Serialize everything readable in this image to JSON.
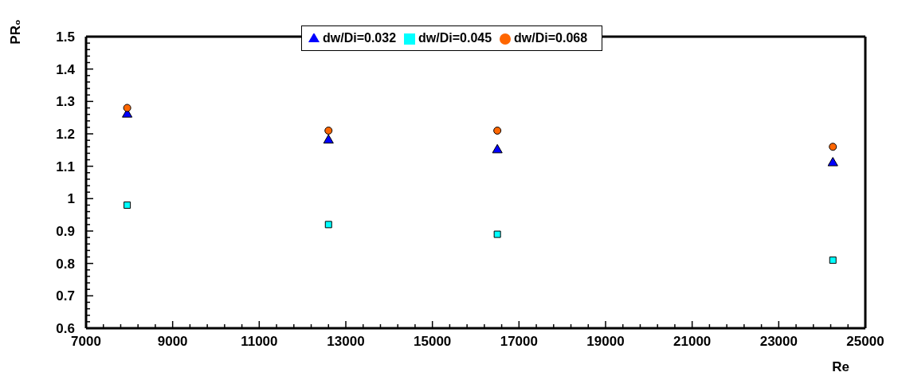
{
  "chart_data": {
    "type": "scatter",
    "xlabel": "Re",
    "ylabel": "PR₀",
    "xlim": [
      7000,
      25000
    ],
    "xticks": [
      7000,
      {
        "value": 7400,
        "label": null
      },
      {
        "value": 7800,
        "label": null
      },
      {
        "value": 8200,
        "label": null
      },
      {
        "value": 8600,
        "label": null
      },
      9000,
      {
        "value": 9400,
        "label": null
      },
      {
        "value": 9800,
        "label": null
      },
      {
        "value": 10200,
        "label": null
      },
      {
        "value": 10600,
        "label": null
      },
      11000,
      {
        "value": 11400,
        "label": null
      },
      {
        "value": 11800,
        "label": null
      },
      {
        "value": 12200,
        "label": null
      },
      {
        "value": 12600,
        "label": null
      },
      13000,
      {
        "value": 13400,
        "label": null
      },
      {
        "value": 13800,
        "label": null
      },
      {
        "value": 14200,
        "label": null
      },
      {
        "value": 14600,
        "label": null
      },
      15000,
      {
        "value": 15400,
        "label": null
      },
      {
        "value": 15800,
        "label": null
      },
      {
        "value": 16200,
        "label": null
      },
      {
        "value": 16600,
        "label": null
      },
      17000,
      {
        "value": 17400,
        "label": null
      },
      {
        "value": 17800,
        "label": null
      },
      {
        "value": 18200,
        "label": null
      },
      {
        "value": 18600,
        "label": null
      },
      19000,
      {
        "value": 19400,
        "label": null
      },
      {
        "value": 19800,
        "label": null
      },
      {
        "value": 20200,
        "label": null
      },
      {
        "value": 20600,
        "label": null
      },
      21000,
      {
        "value": 21400,
        "label": null
      },
      {
        "value": 21800,
        "label": null
      },
      {
        "value": 22200,
        "label": null
      },
      {
        "value": 22600,
        "label": null
      },
      23000,
      {
        "value": 23400,
        "label": null
      },
      {
        "value": 23800,
        "label": null
      },
      {
        "value": 24200,
        "label": null
      },
      {
        "value": 24600,
        "label": null
      },
      25000
    ],
    "ylim": [
      0.6,
      1.5
    ],
    "yticks": [
      0.6,
      {
        "value": 0.62,
        "label": null
      },
      {
        "value": 0.64,
        "label": null
      },
      {
        "value": 0.66,
        "label": null
      },
      {
        "value": 0.68,
        "label": null
      },
      0.7,
      {
        "value": 0.72,
        "label": null
      },
      {
        "value": 0.74,
        "label": null
      },
      {
        "value": 0.76,
        "label": null
      },
      {
        "value": 0.78,
        "label": null
      },
      0.8,
      {
        "value": 0.82,
        "label": null
      },
      {
        "value": 0.84,
        "label": null
      },
      {
        "value": 0.86,
        "label": null
      },
      {
        "value": 0.88,
        "label": null
      },
      0.9,
      {
        "value": 0.92,
        "label": null
      },
      {
        "value": 0.94,
        "label": null
      },
      {
        "value": 0.96,
        "label": null
      },
      {
        "value": 0.98,
        "label": null
      },
      1,
      {
        "value": 1.02,
        "label": null
      },
      {
        "value": 1.04,
        "label": null
      },
      {
        "value": 1.06,
        "label": null
      },
      {
        "value": 1.08,
        "label": null
      },
      1.1,
      {
        "value": 1.12,
        "label": null
      },
      {
        "value": 1.14,
        "label": null
      },
      {
        "value": 1.16,
        "label": null
      },
      {
        "value": 1.18,
        "label": null
      },
      1.2,
      {
        "value": 1.22,
        "label": null
      },
      {
        "value": 1.24,
        "label": null
      },
      {
        "value": 1.26,
        "label": null
      },
      {
        "value": 1.28,
        "label": null
      },
      1.3,
      {
        "value": 1.32,
        "label": null
      },
      {
        "value": 1.34,
        "label": null
      },
      {
        "value": 1.36,
        "label": null
      },
      {
        "value": 1.38,
        "label": null
      },
      1.4,
      {
        "value": 1.42,
        "label": null
      },
      {
        "value": 1.44,
        "label": null
      },
      {
        "value": 1.46,
        "label": null
      },
      {
        "value": 1.48,
        "label": null
      },
      1.5
    ],
    "grid": false,
    "legend": "top",
    "x": [
      7950,
      12600,
      16500,
      24250
    ],
    "series": [
      {
        "name": "dw/Di=0.032",
        "color": "#0000ff",
        "marker": "triangle",
        "values": [
          1.26,
          1.18,
          1.15,
          1.11
        ]
      },
      {
        "name": "dw/Di=0.045",
        "color": "#00ffff",
        "marker": "square",
        "values": [
          0.98,
          0.92,
          0.89,
          0.81
        ]
      },
      {
        "name": "dw/Di=0.068",
        "color": "#ff6600",
        "marker": "circle",
        "values": [
          1.28,
          1.21,
          1.21,
          1.16
        ]
      }
    ]
  }
}
